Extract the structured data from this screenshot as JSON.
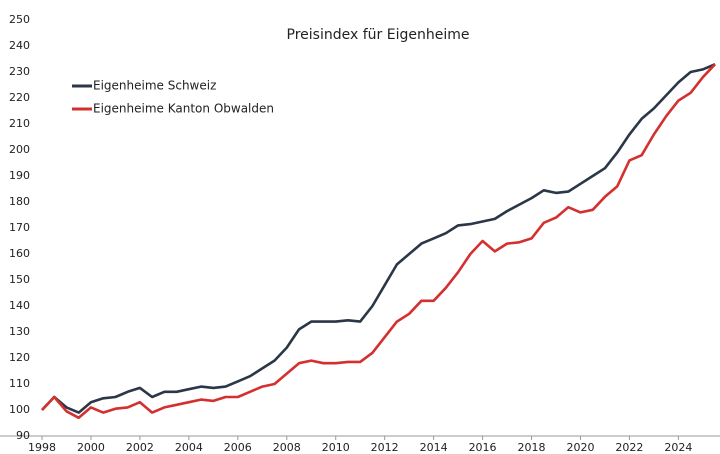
{
  "chart_data": {
    "type": "line",
    "title": "Preisindex für Eigenheime",
    "x": [
      1998.0,
      1998.5,
      1999.0,
      1999.5,
      2000.0,
      2000.5,
      2001.0,
      2001.5,
      2002.0,
      2002.5,
      2003.0,
      2003.5,
      2004.0,
      2004.5,
      2005.0,
      2005.5,
      2006.0,
      2006.5,
      2007.0,
      2007.5,
      2008.0,
      2008.5,
      2009.0,
      2009.5,
      2010.0,
      2010.5,
      2011.0,
      2011.5,
      2012.0,
      2012.5,
      2013.0,
      2013.5,
      2014.0,
      2014.5,
      2015.0,
      2015.5,
      2016.0,
      2016.5,
      2017.0,
      2017.5,
      2018.0,
      2018.5,
      2019.0,
      2019.5,
      2020.0,
      2020.5,
      2021.0,
      2021.5,
      2022.0,
      2022.5,
      2023.0,
      2023.5,
      2024.0,
      2024.5,
      2025.0,
      2025.5
    ],
    "series": [
      {
        "name": "Eigenheime Schweiz",
        "color": "#2b3648",
        "values": [
          100,
          105,
          101,
          99,
          103,
          104.5,
          105,
          107,
          108.5,
          105,
          107,
          107,
          108,
          109,
          108.5,
          109,
          111,
          113,
          116,
          119,
          124,
          131,
          134,
          134,
          134,
          134.5,
          134,
          140,
          148,
          156,
          160,
          164,
          166,
          168,
          171,
          171.5,
          172.5,
          173.5,
          176.5,
          179,
          181.5,
          184.5,
          183.5,
          184,
          187,
          190,
          193,
          199,
          206,
          212,
          216,
          221,
          226,
          230,
          231,
          233
        ]
      },
      {
        "name": "Eigenheime Kanton Obwalden",
        "color": "#d3302f",
        "values": [
          100,
          105,
          99.5,
          97,
          101,
          99,
          100.5,
          101,
          103,
          99,
          101,
          102,
          103,
          104,
          103.5,
          105,
          105,
          107,
          109,
          110,
          114,
          118,
          119,
          118,
          118,
          118.5,
          118.5,
          122,
          128,
          134,
          137,
          142,
          142,
          147,
          153,
          160,
          165,
          161,
          164,
          164.5,
          166,
          172,
          174,
          178,
          176,
          177,
          182,
          186,
          196,
          198,
          206,
          213,
          219,
          222,
          228,
          233
        ]
      }
    ],
    "xlim": [
      1998,
      2025.7
    ],
    "xticks": [
      1998,
      2000,
      2002,
      2004,
      2006,
      2008,
      2010,
      2012,
      2014,
      2016,
      2018,
      2020,
      2022,
      2024
    ],
    "ylim": [
      90,
      250
    ],
    "yticks": [
      90,
      100,
      110,
      120,
      130,
      140,
      150,
      160,
      170,
      180,
      190,
      200,
      210,
      220,
      230,
      240,
      250
    ],
    "legend": "upper left"
  }
}
